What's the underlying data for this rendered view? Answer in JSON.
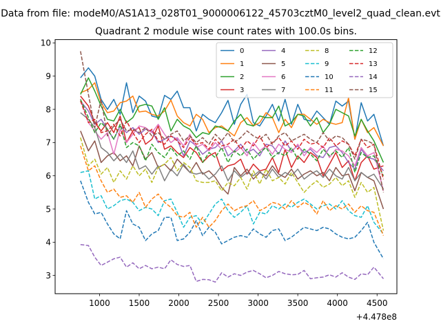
{
  "suptitle": "Data from file: modeM0/AS1A13_028T01_9000006122_45703cztM0_level2_quad_clean.evt",
  "chart_data": {
    "type": "line",
    "title": "Quadrant 2 module wise count rates with 100.0s bins.",
    "xlabel": "",
    "ylabel": "",
    "x_offset_label": "+4.478e8",
    "xlim": [
      440,
      4750
    ],
    "ylim": [
      2.45,
      10.1
    ],
    "x_ticks": [
      1000,
      1500,
      2000,
      2500,
      3000,
      3500,
      4000,
      4500
    ],
    "x_tick_labels": [
      "1000",
      "1500",
      "2000",
      "2500",
      "3000",
      "3500",
      "4000",
      "4500"
    ],
    "y_ticks": [
      3,
      4,
      5,
      6,
      7,
      8,
      9,
      10
    ],
    "y_tick_labels": [
      "3",
      "4",
      "5",
      "6",
      "7",
      "8",
      "9",
      "10"
    ],
    "grid": false,
    "legend_position": "top-right",
    "x": [
      760,
      860,
      940,
      1020,
      1100,
      1180,
      1260,
      1340,
      1420,
      1500,
      1580,
      1660,
      1740,
      1820,
      1900,
      1980,
      2060,
      2140,
      2220,
      2300,
      2380,
      2460,
      2540,
      2620,
      2700,
      2780,
      2860,
      2940,
      3020,
      3100,
      3180,
      3260,
      3340,
      3420,
      3500,
      3580,
      3660,
      3740,
      3820,
      3900,
      3980,
      4060,
      4140,
      4220,
      4300,
      4380,
      4460,
      4580
    ],
    "series": [
      {
        "name": "0",
        "color": "#1f77b4",
        "dash": "solid",
        "values": [
          8.95,
          9.25,
          9.0,
          8.3,
          8.0,
          8.3,
          7.85,
          8.8,
          7.9,
          8.4,
          8.25,
          7.8,
          7.75,
          8.42,
          8.3,
          8.55,
          8.05,
          8.05,
          7.35,
          7.85,
          7.7,
          7.6,
          7.9,
          8.27,
          7.55,
          8.15,
          8.45,
          7.6,
          7.5,
          7.8,
          8.15,
          7.65,
          8.3,
          7.55,
          8.15,
          7.7,
          7.65,
          7.95,
          7.75,
          7.55,
          8.25,
          8.1,
          8.25,
          7.1,
          8.2,
          7.65,
          7.85,
          6.9
        ]
      },
      {
        "name": "1",
        "color": "#ff7f0e",
        "dash": "solid",
        "values": [
          8.5,
          8.6,
          8.8,
          8.2,
          7.9,
          7.95,
          8.2,
          8.25,
          8.4,
          7.92,
          7.95,
          7.85,
          7.8,
          7.95,
          8.28,
          7.8,
          7.6,
          7.5,
          7.85,
          7.7,
          7.3,
          7.45,
          7.5,
          7.35,
          7.2,
          7.6,
          7.75,
          7.5,
          7.6,
          7.9,
          7.75,
          7.3,
          7.7,
          7.45,
          7.85,
          7.85,
          7.7,
          7.55,
          7.7,
          7.6,
          7.55,
          7.6,
          8.35,
          7.1,
          7.7,
          7.3,
          7.45,
          6.9
        ]
      },
      {
        "name": "2",
        "color": "#2ca02c",
        "dash": "solid",
        "values": [
          8.45,
          8.95,
          8.55,
          8.1,
          7.7,
          7.65,
          8.0,
          7.6,
          7.75,
          8.1,
          8.15,
          8.1,
          7.7,
          8.05,
          7.35,
          7.7,
          7.5,
          7.4,
          7.15,
          7.3,
          7.25,
          7.5,
          7.45,
          7.35,
          7.65,
          7.85,
          7.55,
          7.5,
          7.8,
          7.75,
          7.75,
          8.1,
          7.5,
          7.6,
          7.85,
          7.8,
          7.5,
          7.75,
          7.3,
          7.55,
          8.0,
          7.9,
          7.8,
          7.2,
          7.7,
          7.35,
          7.05,
          6.4
        ]
      },
      {
        "name": "3",
        "color": "#d62728",
        "dash": "solid",
        "values": [
          8.4,
          8.1,
          7.6,
          7.35,
          7.6,
          7.3,
          7.8,
          7.0,
          7.35,
          7.45,
          6.95,
          7.1,
          7.5,
          6.8,
          6.9,
          6.7,
          6.55,
          6.85,
          6.7,
          6.4,
          6.6,
          6.7,
          6.15,
          6.3,
          6.35,
          6.5,
          6.05,
          6.35,
          6.15,
          6.2,
          6.55,
          6.1,
          6.8,
          6.25,
          6.6,
          6.4,
          6.7,
          6.55,
          6.0,
          6.35,
          6.7,
          6.25,
          6.45,
          5.85,
          6.4,
          6.6,
          6.2,
          6.3
        ]
      },
      {
        "name": "4",
        "color": "#9467bd",
        "dash": "solid",
        "values": [
          8.25,
          7.95,
          7.55,
          7.7,
          7.4,
          7.1,
          7.5,
          7.3,
          7.45,
          7.25,
          7.4,
          7.35,
          7.0,
          7.1,
          7.2,
          7.1,
          6.6,
          7.05,
          6.9,
          6.65,
          6.8,
          6.85,
          7.05,
          6.6,
          6.75,
          6.95,
          6.7,
          6.8,
          6.6,
          6.95,
          6.9,
          6.65,
          7.05,
          6.75,
          6.9,
          6.7,
          6.8,
          6.6,
          6.55,
          6.85,
          6.9,
          6.7,
          6.4,
          6.2,
          6.8,
          6.55,
          6.5,
          6.15
        ]
      },
      {
        "name": "5",
        "color": "#8c564b",
        "dash": "solid",
        "values": [
          7.35,
          6.75,
          7.05,
          6.4,
          6.6,
          6.7,
          6.45,
          6.6,
          6.3,
          6.9,
          6.5,
          6.7,
          6.25,
          6.35,
          6.15,
          6.5,
          6.3,
          6.1,
          6.4,
          6.05,
          6.15,
          5.95,
          5.65,
          5.45,
          6.25,
          6.0,
          6.2,
          5.9,
          6.1,
          6.0,
          6.3,
          6.05,
          5.95,
          6.2,
          5.9,
          6.05,
          6.15,
          6.0,
          6.1,
          5.85,
          6.25,
          6.0,
          6.05,
          5.55,
          6.1,
          5.95,
          5.85,
          5.0
        ]
      },
      {
        "name": "6",
        "color": "#e377c2",
        "dash": "solid",
        "values": [
          8.3,
          7.6,
          7.35,
          7.1,
          7.3,
          6.65,
          7.4,
          7.0,
          7.25,
          7.5,
          7.45,
          7.3,
          7.55,
          7.25,
          7.0,
          7.15,
          6.9,
          7.25,
          6.85,
          6.95,
          6.75,
          7.0,
          6.8,
          6.9,
          6.7,
          6.85,
          6.6,
          7.0,
          6.75,
          6.9,
          6.65,
          6.95,
          6.8,
          6.7,
          6.95,
          6.6,
          6.85,
          6.7,
          6.9,
          6.55,
          6.8,
          6.75,
          6.6,
          6.3,
          6.85,
          6.6,
          6.7,
          5.55
        ]
      },
      {
        "name": "7",
        "color": "#7f7f7f",
        "dash": "solid",
        "values": [
          7.9,
          7.7,
          7.45,
          6.85,
          6.7,
          6.45,
          6.65,
          6.4,
          6.75,
          6.2,
          6.3,
          6.05,
          6.3,
          5.85,
          6.2,
          6.0,
          6.35,
          6.1,
          6.05,
          6.1,
          5.9,
          6.05,
          6.3,
          5.85,
          6.15,
          5.95,
          6.1,
          6.0,
          6.15,
          5.9,
          6.2,
          5.95,
          6.1,
          6.0,
          6.2,
          5.9,
          6.05,
          6.15,
          5.95,
          6.2,
          6.0,
          5.9,
          6.25,
          5.85,
          6.1,
          5.95,
          6.05,
          5.6
        ]
      },
      {
        "name": "8",
        "color": "#bcbd22",
        "dash": "dashed",
        "values": [
          7.15,
          6.3,
          6.5,
          6.05,
          6.25,
          5.8,
          6.15,
          5.9,
          6.3,
          6.0,
          6.2,
          5.8,
          6.25,
          6.35,
          6.55,
          6.15,
          6.4,
          6.25,
          5.85,
          5.8,
          5.8,
          5.85,
          5.55,
          5.8,
          5.7,
          5.95,
          5.6,
          6.15,
          5.75,
          6.2,
          5.85,
          5.95,
          5.75,
          6.1,
          5.8,
          5.5,
          5.7,
          5.85,
          5.65,
          5.75,
          5.95,
          5.7,
          5.85,
          5.35,
          5.8,
          5.5,
          5.65,
          4.35
        ]
      },
      {
        "name": "9",
        "color": "#17becf",
        "dash": "dashed",
        "values": [
          6.1,
          6.15,
          5.3,
          5.4,
          5.0,
          5.1,
          5.25,
          5.3,
          5.2,
          4.95,
          5.05,
          5.0,
          4.8,
          5.25,
          5.3,
          4.9,
          4.45,
          4.75,
          4.8,
          4.55,
          4.85,
          5.15,
          5.3,
          4.95,
          4.75,
          4.9,
          5.1,
          4.55,
          4.9,
          4.85,
          5.1,
          5.0,
          5.15,
          5.05,
          5.2,
          5.3,
          5.15,
          5.0,
          5.1,
          5.15,
          5.0,
          5.25,
          4.95,
          4.8,
          4.75,
          5.1,
          4.6,
          4.25
        ]
      },
      {
        "name": "10",
        "color": "#1f77b4",
        "dash": "dashed",
        "values": [
          5.85,
          5.2,
          4.85,
          4.9,
          4.55,
          4.25,
          4.1,
          4.95,
          4.55,
          4.45,
          4.05,
          4.25,
          4.35,
          4.75,
          4.75,
          4.05,
          4.1,
          4.3,
          4.65,
          4.2,
          4.45,
          4.3,
          3.95,
          4.05,
          4.15,
          4.2,
          4.15,
          4.4,
          4.25,
          4.15,
          4.35,
          4.4,
          4.05,
          4.15,
          4.3,
          4.45,
          4.4,
          4.35,
          4.45,
          4.4,
          4.25,
          4.15,
          4.1,
          4.15,
          4.35,
          4.6,
          4.0,
          3.5
        ]
      },
      {
        "name": "11",
        "color": "#ff7f0e",
        "dash": "dashed",
        "values": [
          6.9,
          6.15,
          6.3,
          5.85,
          5.5,
          5.6,
          5.35,
          5.4,
          5.2,
          5.5,
          5.05,
          5.3,
          5.45,
          5.2,
          5.05,
          4.8,
          4.75,
          4.9,
          4.45,
          4.75,
          4.45,
          4.65,
          4.95,
          5.15,
          4.95,
          5.05,
          5.1,
          5.25,
          4.95,
          5.05,
          5.2,
          5.15,
          5.0,
          5.25,
          5.05,
          5.2,
          5.1,
          4.85,
          5.25,
          4.95,
          5.1,
          5.0,
          5.15,
          4.9,
          5.1,
          4.95,
          4.9,
          4.2
        ]
      },
      {
        "name": "12",
        "color": "#2ca02c",
        "dash": "dashed",
        "values": [
          8.3,
          7.75,
          7.3,
          7.6,
          7.4,
          7.1,
          7.55,
          6.85,
          7.0,
          6.9,
          6.45,
          6.95,
          6.7,
          6.55,
          6.85,
          6.6,
          6.75,
          6.5,
          6.9,
          6.4,
          6.7,
          6.55,
          6.85,
          6.4,
          6.75,
          6.6,
          6.8,
          6.5,
          6.7,
          6.85,
          6.55,
          6.7,
          6.6,
          6.85,
          6.5,
          6.8,
          6.65,
          6.45,
          6.8,
          6.6,
          6.75,
          6.55,
          6.85,
          6.1,
          6.7,
          6.55,
          6.6,
          6.0
        ]
      },
      {
        "name": "13",
        "color": "#d62728",
        "dash": "dashed",
        "values": [
          8.25,
          7.6,
          7.7,
          7.3,
          7.35,
          7.55,
          7.2,
          7.65,
          7.3,
          7.0,
          7.25,
          7.4,
          7.05,
          6.95,
          7.2,
          7.05,
          6.85,
          7.15,
          6.95,
          7.0,
          6.8,
          7.1,
          6.9,
          6.95,
          7.1,
          6.8,
          7.05,
          6.9,
          7.2,
          6.85,
          7.0,
          7.15,
          6.9,
          7.05,
          6.8,
          7.1,
          6.95,
          7.0,
          6.85,
          7.15,
          6.9,
          7.05,
          6.95,
          6.6,
          7.1,
          6.85,
          6.95,
          5.9
        ]
      },
      {
        "name": "14",
        "color": "#9467bd",
        "dash": "dashed",
        "values": [
          3.93,
          3.9,
          3.55,
          3.3,
          3.4,
          3.5,
          3.55,
          3.25,
          3.38,
          3.2,
          3.3,
          3.2,
          3.25,
          3.2,
          3.47,
          3.33,
          3.27,
          3.3,
          2.82,
          2.88,
          2.87,
          2.8,
          3.08,
          2.95,
          3.05,
          3.0,
          3.1,
          3.15,
          3.05,
          2.93,
          3.0,
          3.12,
          3.05,
          3.02,
          3.03,
          3.15,
          2.9,
          2.93,
          2.95,
          3.02,
          2.95,
          3.08,
          2.95,
          2.88,
          3.05,
          3.02,
          3.25,
          2.9
        ]
      },
      {
        "name": "15",
        "color": "#8c564b",
        "dash": "dashed",
        "values": [
          9.75,
          8.45,
          7.45,
          8.3,
          7.2,
          7.5,
          7.7,
          7.35,
          7.4,
          7.3,
          7.45,
          7.2,
          7.3,
          7.1,
          7.25,
          7.35,
          7.05,
          7.2,
          7.0,
          7.15,
          6.95,
          7.25,
          7.05,
          7.3,
          7.0,
          7.15,
          7.35,
          7.2,
          7.1,
          7.25,
          6.95,
          7.2,
          7.3,
          7.05,
          7.15,
          7.25,
          7.1,
          7.0,
          7.3,
          7.05,
          7.2,
          7.15,
          6.95,
          6.5,
          7.1,
          7.05,
          6.95,
          5.5
        ]
      }
    ]
  }
}
